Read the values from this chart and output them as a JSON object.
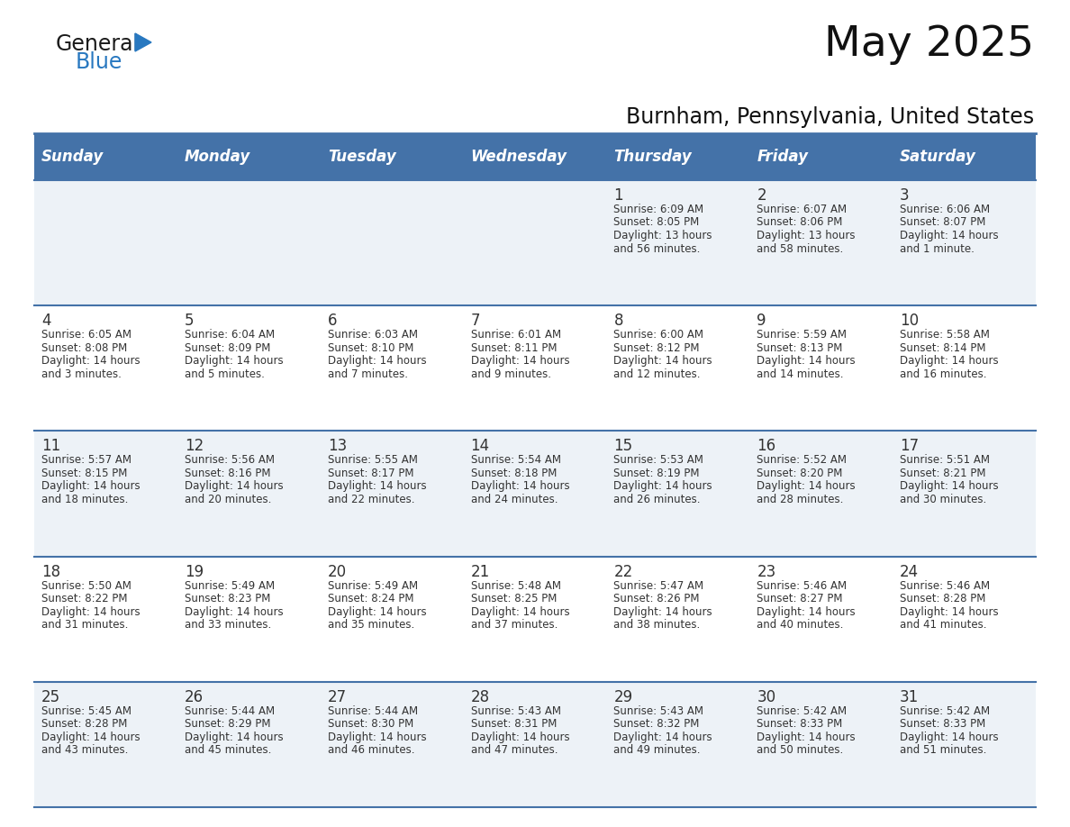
{
  "title": "May 2025",
  "subtitle": "Burnham, Pennsylvania, United States",
  "header_bg": "#4472a8",
  "header_text_color": "#ffffff",
  "day_names": [
    "Sunday",
    "Monday",
    "Tuesday",
    "Wednesday",
    "Thursday",
    "Friday",
    "Saturday"
  ],
  "cell_bg_odd": "#edf2f7",
  "cell_bg_even": "#ffffff",
  "grid_color": "#4472a8",
  "text_color": "#333333",
  "logo_general_color": "#1a1a1a",
  "logo_blue_color": "#2878c0",
  "days": [
    {
      "day": 1,
      "col": 4,
      "row": 0,
      "sunrise": "6:09 AM",
      "sunset": "8:05 PM",
      "daylight": "13 hours and 56 minutes."
    },
    {
      "day": 2,
      "col": 5,
      "row": 0,
      "sunrise": "6:07 AM",
      "sunset": "8:06 PM",
      "daylight": "13 hours and 58 minutes."
    },
    {
      "day": 3,
      "col": 6,
      "row": 0,
      "sunrise": "6:06 AM",
      "sunset": "8:07 PM",
      "daylight": "14 hours and 1 minute."
    },
    {
      "day": 4,
      "col": 0,
      "row": 1,
      "sunrise": "6:05 AM",
      "sunset": "8:08 PM",
      "daylight": "14 hours and 3 minutes."
    },
    {
      "day": 5,
      "col": 1,
      "row": 1,
      "sunrise": "6:04 AM",
      "sunset": "8:09 PM",
      "daylight": "14 hours and 5 minutes."
    },
    {
      "day": 6,
      "col": 2,
      "row": 1,
      "sunrise": "6:03 AM",
      "sunset": "8:10 PM",
      "daylight": "14 hours and 7 minutes."
    },
    {
      "day": 7,
      "col": 3,
      "row": 1,
      "sunrise": "6:01 AM",
      "sunset": "8:11 PM",
      "daylight": "14 hours and 9 minutes."
    },
    {
      "day": 8,
      "col": 4,
      "row": 1,
      "sunrise": "6:00 AM",
      "sunset": "8:12 PM",
      "daylight": "14 hours and 12 minutes."
    },
    {
      "day": 9,
      "col": 5,
      "row": 1,
      "sunrise": "5:59 AM",
      "sunset": "8:13 PM",
      "daylight": "14 hours and 14 minutes."
    },
    {
      "day": 10,
      "col": 6,
      "row": 1,
      "sunrise": "5:58 AM",
      "sunset": "8:14 PM",
      "daylight": "14 hours and 16 minutes."
    },
    {
      "day": 11,
      "col": 0,
      "row": 2,
      "sunrise": "5:57 AM",
      "sunset": "8:15 PM",
      "daylight": "14 hours and 18 minutes."
    },
    {
      "day": 12,
      "col": 1,
      "row": 2,
      "sunrise": "5:56 AM",
      "sunset": "8:16 PM",
      "daylight": "14 hours and 20 minutes."
    },
    {
      "day": 13,
      "col": 2,
      "row": 2,
      "sunrise": "5:55 AM",
      "sunset": "8:17 PM",
      "daylight": "14 hours and 22 minutes."
    },
    {
      "day": 14,
      "col": 3,
      "row": 2,
      "sunrise": "5:54 AM",
      "sunset": "8:18 PM",
      "daylight": "14 hours and 24 minutes."
    },
    {
      "day": 15,
      "col": 4,
      "row": 2,
      "sunrise": "5:53 AM",
      "sunset": "8:19 PM",
      "daylight": "14 hours and 26 minutes."
    },
    {
      "day": 16,
      "col": 5,
      "row": 2,
      "sunrise": "5:52 AM",
      "sunset": "8:20 PM",
      "daylight": "14 hours and 28 minutes."
    },
    {
      "day": 17,
      "col": 6,
      "row": 2,
      "sunrise": "5:51 AM",
      "sunset": "8:21 PM",
      "daylight": "14 hours and 30 minutes."
    },
    {
      "day": 18,
      "col": 0,
      "row": 3,
      "sunrise": "5:50 AM",
      "sunset": "8:22 PM",
      "daylight": "14 hours and 31 minutes."
    },
    {
      "day": 19,
      "col": 1,
      "row": 3,
      "sunrise": "5:49 AM",
      "sunset": "8:23 PM",
      "daylight": "14 hours and 33 minutes."
    },
    {
      "day": 20,
      "col": 2,
      "row": 3,
      "sunrise": "5:49 AM",
      "sunset": "8:24 PM",
      "daylight": "14 hours and 35 minutes."
    },
    {
      "day": 21,
      "col": 3,
      "row": 3,
      "sunrise": "5:48 AM",
      "sunset": "8:25 PM",
      "daylight": "14 hours and 37 minutes."
    },
    {
      "day": 22,
      "col": 4,
      "row": 3,
      "sunrise": "5:47 AM",
      "sunset": "8:26 PM",
      "daylight": "14 hours and 38 minutes."
    },
    {
      "day": 23,
      "col": 5,
      "row": 3,
      "sunrise": "5:46 AM",
      "sunset": "8:27 PM",
      "daylight": "14 hours and 40 minutes."
    },
    {
      "day": 24,
      "col": 6,
      "row": 3,
      "sunrise": "5:46 AM",
      "sunset": "8:28 PM",
      "daylight": "14 hours and 41 minutes."
    },
    {
      "day": 25,
      "col": 0,
      "row": 4,
      "sunrise": "5:45 AM",
      "sunset": "8:28 PM",
      "daylight": "14 hours and 43 minutes."
    },
    {
      "day": 26,
      "col": 1,
      "row": 4,
      "sunrise": "5:44 AM",
      "sunset": "8:29 PM",
      "daylight": "14 hours and 45 minutes."
    },
    {
      "day": 27,
      "col": 2,
      "row": 4,
      "sunrise": "5:44 AM",
      "sunset": "8:30 PM",
      "daylight": "14 hours and 46 minutes."
    },
    {
      "day": 28,
      "col": 3,
      "row": 4,
      "sunrise": "5:43 AM",
      "sunset": "8:31 PM",
      "daylight": "14 hours and 47 minutes."
    },
    {
      "day": 29,
      "col": 4,
      "row": 4,
      "sunrise": "5:43 AM",
      "sunset": "8:32 PM",
      "daylight": "14 hours and 49 minutes."
    },
    {
      "day": 30,
      "col": 5,
      "row": 4,
      "sunrise": "5:42 AM",
      "sunset": "8:33 PM",
      "daylight": "14 hours and 50 minutes."
    },
    {
      "day": 31,
      "col": 6,
      "row": 4,
      "sunrise": "5:42 AM",
      "sunset": "8:33 PM",
      "daylight": "14 hours and 51 minutes."
    }
  ]
}
